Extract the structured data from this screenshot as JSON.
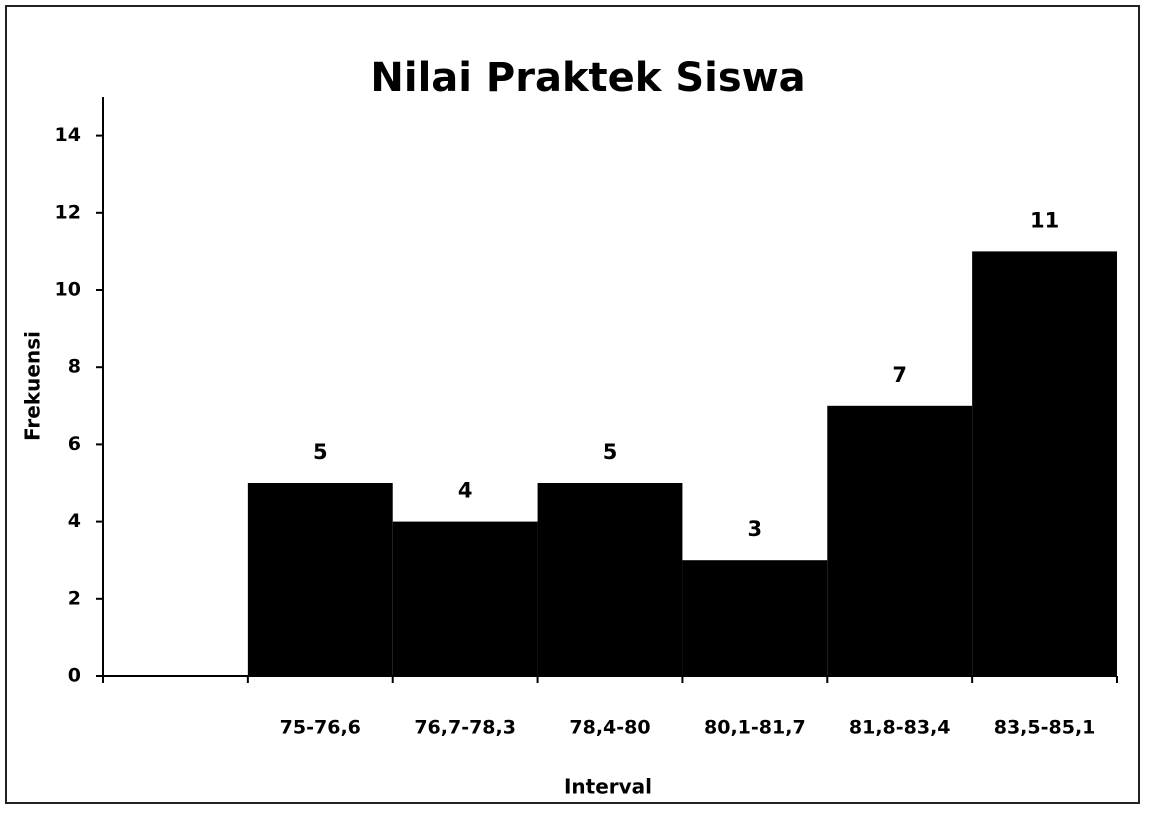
{
  "chart_data": {
    "type": "bar",
    "title": "Nilai Praktek Siswa",
    "x_label": "Interval",
    "y_label": "Frekuensi",
    "categories": [
      null,
      "75-76,6",
      "76,7-78,3",
      "78,4-80",
      "80,1-81,7",
      "81,8-83,4",
      "83,5-85,1"
    ],
    "values": [
      null,
      5,
      4,
      5,
      3,
      7,
      11
    ],
    "color": "#000000",
    "ylim": [
      0,
      15
    ],
    "yticks": [
      0,
      2,
      4,
      6,
      8,
      10,
      12,
      14
    ],
    "grid": false
  }
}
